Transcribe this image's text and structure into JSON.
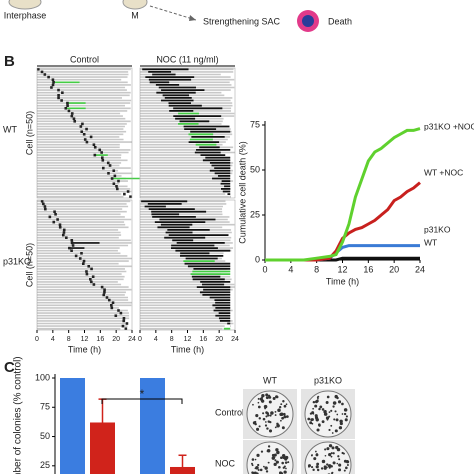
{
  "panel_a": {
    "labels": [
      "Interphase",
      "M",
      "Strengthening SAC",
      "Death"
    ]
  },
  "panels": [
    "B",
    "C"
  ],
  "chart_data": [
    {
      "type": "raster",
      "columns": [
        "Control",
        "NOC (11 ng/ml)"
      ],
      "rows": [
        "WT",
        "p31KO"
      ],
      "ylabel": "Cell (n=50)",
      "xlabel": "Time (h)",
      "xlim": [
        0,
        24
      ],
      "xticks": [
        0,
        4,
        8,
        12,
        16,
        20,
        24
      ]
    },
    {
      "type": "line",
      "ylabel": "Cumulative cell death (%)",
      "xlabel": "Time (h)",
      "xlim": [
        0,
        24
      ],
      "xticks": [
        0,
        4,
        8,
        12,
        16,
        20,
        24
      ],
      "ylim": [
        0,
        75
      ],
      "yticks": [
        0,
        25,
        50,
        75
      ],
      "x": [
        0,
        2,
        4,
        6,
        8,
        10,
        11,
        12,
        13,
        14,
        15,
        16,
        17,
        18,
        19,
        20,
        21,
        22,
        23,
        24
      ],
      "series": [
        {
          "name": "p31KO +NOC",
          "color": "#5fd12e",
          "values": [
            0,
            0,
            0,
            0,
            1,
            2,
            3,
            10,
            20,
            35,
            45,
            55,
            60,
            62,
            65,
            68,
            70,
            72,
            72,
            73
          ]
        },
        {
          "name": "WT +NOC",
          "color": "#c8201e",
          "values": [
            0,
            0,
            0,
            0,
            0,
            1,
            5,
            12,
            15,
            17,
            18,
            20,
            22,
            25,
            28,
            33,
            35,
            38,
            40,
            43
          ]
        },
        {
          "name": "p31KO",
          "color": "#3a7bd5",
          "values": [
            0,
            0,
            0,
            0,
            0,
            1,
            4,
            7,
            8,
            8,
            8,
            8,
            8,
            8,
            8,
            8,
            8,
            8,
            8,
            8
          ]
        },
        {
          "name": "WT",
          "color": "#111111",
          "values": [
            0,
            0,
            0,
            0,
            0,
            0,
            0,
            1,
            1,
            1,
            1,
            1,
            1,
            1,
            1,
            1,
            1,
            1,
            1,
            1
          ]
        }
      ]
    },
    {
      "type": "bar",
      "ylabel": "Number of colonies (% control)",
      "ylim": [
        18,
        100
      ],
      "yticks": [
        25,
        50,
        75,
        100
      ],
      "categories": [
        null,
        null,
        null,
        null
      ],
      "values": [
        100,
        62,
        100,
        24
      ],
      "errors": [
        null,
        20,
        null,
        10
      ],
      "colors": [
        "#3b7de0",
        "#d0231b",
        "#3b7de0",
        "#d0231b"
      ],
      "annotation": "*",
      "plates": {
        "columns": [
          "WT",
          "p31KO"
        ],
        "rows": [
          "Control",
          "NOC"
        ]
      }
    }
  ]
}
